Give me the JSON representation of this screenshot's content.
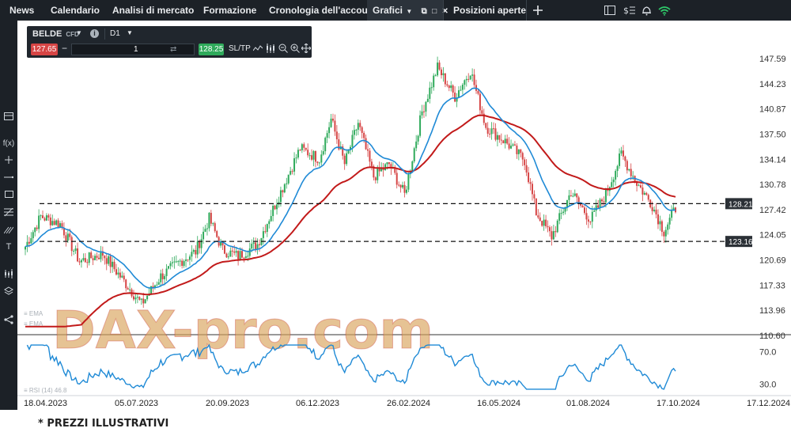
{
  "nav": {
    "tabs": [
      "News",
      "Calendario",
      "Analisi di mercato",
      "Formazione",
      "Cronologia dell'account",
      "Grafici",
      "Posizioni aperte"
    ],
    "active_tab": "Grafici"
  },
  "instrument": {
    "symbol": "BELDE",
    "kind": "CFD",
    "timeframe": "D1",
    "sell_price": "127.65",
    "buy_price": "128.25",
    "quantity": "1",
    "sltp_label": "SL/TP"
  },
  "chart_data": {
    "type": "candlestick",
    "y_ticks": [
      "147.59",
      "144.23",
      "140.87",
      "137.50",
      "134.14",
      "130.78",
      "127.42",
      "124.05",
      "120.69",
      "117.33",
      "113.96",
      "110.60"
    ],
    "x_ticks": [
      "18.04.2023",
      "05.07.2023",
      "20.09.2023",
      "06.12.2023",
      "26.02.2024",
      "16.05.2024",
      "01.08.2024",
      "17.10.2024",
      "17.12.2024"
    ],
    "ylim": [
      110.6,
      147.59
    ],
    "levels": [
      {
        "label": "128.21",
        "value": 128.21
      },
      {
        "label": "123.16",
        "value": 123.16
      }
    ],
    "rsi_ticks": [
      "70.0",
      "30.0"
    ],
    "indicator_labels": [
      "EMA",
      "EMA",
      "RSI (14) 46.8"
    ],
    "colors": {
      "up": "#2faa5b",
      "down": "#d64545",
      "ema_fast": "#1f8ad6",
      "ema_slow": "#c21a1a",
      "rsi": "#1f8ad6"
    }
  },
  "watermark": "DAX-pro.com",
  "footer": {
    "note": "* PREZZI ILLUSTRATIVI"
  }
}
